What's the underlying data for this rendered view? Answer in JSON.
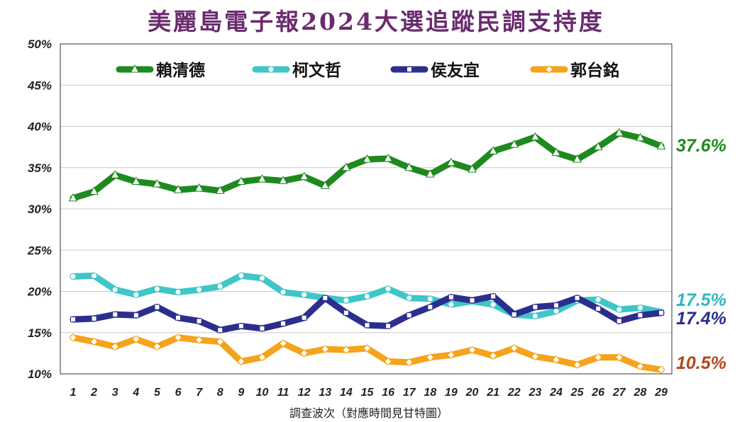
{
  "title": "美麗島電子報2024大選追蹤民調支持度",
  "chart_data": {
    "type": "line",
    "title": "美麗島電子報2024大選追蹤民調支持度",
    "xlabel": "調查波次（對應時間見甘特圖）",
    "ylabel": "",
    "x": [
      1,
      2,
      3,
      4,
      5,
      6,
      7,
      8,
      9,
      10,
      11,
      12,
      13,
      14,
      15,
      16,
      17,
      18,
      19,
      20,
      21,
      22,
      23,
      24,
      25,
      26,
      27,
      28,
      29
    ],
    "ylim": [
      10,
      50
    ],
    "yticks": [
      10,
      15,
      20,
      25,
      30,
      35,
      40,
      45,
      50
    ],
    "ytick_labels": [
      "10%",
      "15%",
      "20%",
      "25%",
      "30%",
      "35%",
      "40%",
      "45%",
      "50%"
    ],
    "grid": true,
    "legend_position": "top",
    "series": [
      {
        "name": "賴清德",
        "color": "#1e8a1e",
        "marker": "triangle",
        "values": [
          31.3,
          32.1,
          34.1,
          33.3,
          33.0,
          32.3,
          32.5,
          32.2,
          33.3,
          33.6,
          33.4,
          33.9,
          32.8,
          35.0,
          36.0,
          36.1,
          35.0,
          34.2,
          35.6,
          34.8,
          37.0,
          37.8,
          38.7,
          36.8,
          36.0,
          37.5,
          39.2,
          38.6,
          37.6
        ],
        "end_label": "37.6%",
        "end_label_color": "#1e8a1e"
      },
      {
        "name": "柯文哲",
        "color": "#3ec6c8",
        "marker": "circle",
        "values": [
          21.8,
          21.9,
          20.2,
          19.6,
          20.3,
          19.9,
          20.2,
          20.6,
          21.9,
          21.6,
          19.9,
          19.6,
          19.2,
          18.9,
          19.4,
          20.3,
          19.2,
          19.1,
          18.4,
          18.8,
          18.4,
          17.2,
          17.0,
          17.6,
          18.9,
          19.0,
          17.8,
          18.0,
          17.5
        ],
        "end_label": "17.5%",
        "end_label_color": "#2fb8c0"
      },
      {
        "name": "侯友宜",
        "color": "#2c2e8e",
        "marker": "square",
        "values": [
          16.6,
          16.7,
          17.2,
          17.1,
          18.1,
          16.8,
          16.4,
          15.3,
          15.8,
          15.5,
          16.1,
          16.8,
          19.2,
          17.4,
          15.9,
          15.8,
          17.1,
          18.1,
          19.3,
          18.9,
          19.4,
          17.2,
          18.1,
          18.3,
          19.2,
          17.9,
          16.4,
          17.1,
          17.4
        ],
        "end_label": "17.4%",
        "end_label_color": "#2c2e8e"
      },
      {
        "name": "郭台銘",
        "color": "#f5a31a",
        "marker": "diamond",
        "values": [
          14.4,
          13.9,
          13.3,
          14.2,
          13.3,
          14.4,
          14.1,
          13.9,
          11.5,
          12.0,
          13.7,
          12.5,
          13.0,
          12.9,
          13.1,
          11.5,
          11.4,
          12.0,
          12.3,
          12.9,
          12.2,
          13.1,
          12.1,
          11.7,
          11.1,
          12.0,
          12.0,
          10.9,
          10.5
        ],
        "end_label": "10.5%",
        "end_label_color": "#b5451a"
      }
    ]
  }
}
